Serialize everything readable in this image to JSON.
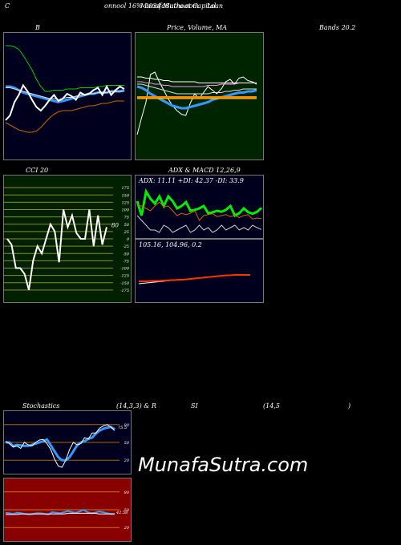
{
  "header": {
    "left": "C",
    "title_a": "onnool 16% 2034 Muthoot Capital",
    "title_b": "MunafaSutra.com",
    "title_c": "Loan",
    "bands_label": "Bands 20.2"
  },
  "watermark": "MunafaSutra.com",
  "colors": {
    "bb_bg": "#00001e",
    "price_bg": "#002400",
    "cci_bg": "#002000",
    "adx_bg": "#00001e",
    "stoch_bg": "#00001e",
    "rsi_bg": "#880000",
    "accent": "#3399ff"
  },
  "chart_data": [
    {
      "type": "line",
      "id": "bollinger",
      "title": "B",
      "series": [
        {
          "color": "#00cc00",
          "values": [
            92,
            92,
            91,
            89,
            84,
            78,
            72,
            64,
            58,
            54,
            54,
            55,
            55,
            55,
            56,
            56,
            56,
            57,
            57,
            57,
            57,
            58,
            58,
            59,
            59,
            59,
            59,
            59
          ]
        },
        {
          "color": "#3399ff",
          "values": [
            58,
            58,
            57,
            55,
            53,
            52,
            51,
            50,
            49,
            48,
            47,
            46,
            45,
            46,
            47,
            48,
            49,
            50,
            51,
            52,
            52,
            53,
            53,
            53,
            54,
            54,
            54,
            55
          ]
        },
        {
          "color": "#dddddd",
          "values": [
            57,
            57,
            56,
            55,
            54,
            53,
            52,
            51,
            50,
            49,
            48,
            48,
            47,
            48,
            49,
            49,
            50,
            51,
            51,
            52,
            52,
            53,
            53,
            53,
            54,
            54,
            54,
            54
          ]
        },
        {
          "color": "#cc6600",
          "values": [
            28,
            26,
            24,
            22,
            21,
            20,
            20,
            21,
            24,
            28,
            32,
            35,
            37,
            38,
            38,
            38,
            39,
            40,
            41,
            42,
            42,
            43,
            44,
            44,
            45,
            46,
            46,
            46
          ]
        },
        {
          "color": "#ffffff",
          "values": [
            30,
            34,
            45,
            51,
            59,
            54,
            47,
            41,
            38,
            42,
            47,
            51,
            46,
            48,
            52,
            50,
            47,
            53,
            51,
            52,
            55,
            57,
            51,
            58,
            51,
            55,
            58,
            56
          ]
        }
      ],
      "ylim": [
        0,
        100
      ]
    },
    {
      "type": "line",
      "id": "price_ma",
      "title": "Price, Volume, MA",
      "series": [
        {
          "color": "#ffffff",
          "values": [
            18,
            32,
            45,
            68,
            70,
            62,
            55,
            48,
            42,
            38,
            35,
            34,
            44,
            52,
            48,
            53,
            58,
            55,
            52,
            56,
            62,
            64,
            60,
            65,
            66,
            63,
            62,
            60
          ]
        },
        {
          "color": "#3399ff",
          "values": [
            58,
            57,
            55,
            52,
            50,
            48,
            46,
            44,
            42,
            41,
            40,
            40,
            41,
            42,
            43,
            44,
            45,
            47,
            48,
            49,
            50,
            51,
            52,
            53,
            53,
            54,
            54,
            55
          ]
        },
        {
          "color": "#dddddd",
          "values": [
            60,
            60,
            59,
            58,
            57,
            56,
            55,
            54,
            53,
            52,
            52,
            52,
            52,
            52,
            52,
            52,
            52,
            53,
            53,
            53,
            54,
            54,
            55,
            55,
            56,
            56,
            56,
            56
          ]
        },
        {
          "color": "#ff88ff",
          "values": [
            62,
            62,
            61,
            61,
            60,
            60,
            59,
            59,
            58,
            58,
            58,
            58,
            58,
            58,
            58,
            58,
            59,
            59,
            59,
            60,
            60,
            60,
            60,
            61,
            61,
            61,
            61,
            61
          ]
        },
        {
          "color": "#ffffff",
          "values": [
            66,
            66,
            65,
            65,
            64,
            64,
            63,
            63,
            62,
            62,
            62,
            62,
            62,
            62,
            61,
            61,
            61,
            61,
            61,
            61,
            61,
            61,
            61,
            61,
            61,
            61,
            61,
            61
          ]
        },
        {
          "color": "#ff8800",
          "values": [
            49,
            49,
            49,
            49,
            49,
            49,
            49,
            49,
            49,
            49,
            49,
            49,
            49,
            49,
            49,
            49,
            49,
            49,
            49,
            49,
            49,
            49,
            49,
            49,
            49,
            49,
            49,
            49
          ]
        }
      ],
      "ylim": [
        0,
        100
      ]
    },
    {
      "type": "line",
      "id": "cci",
      "title": "CCI 20",
      "current_label": "80",
      "ticks": [
        "175",
        "150",
        "125",
        "100",
        "75",
        "50",
        "25",
        "0",
        "-25",
        "-50",
        "-75",
        "-100",
        "-125",
        "-150",
        "-175"
      ],
      "values": [
        0,
        -20,
        -100,
        -100,
        -120,
        -175,
        -75,
        -25,
        -50,
        0,
        50,
        25,
        -80,
        100,
        40,
        80,
        20,
        0,
        0,
        100,
        -25,
        80,
        -20,
        40
      ],
      "ylim": [
        -200,
        200
      ]
    },
    {
      "type": "line",
      "id": "adx_macd",
      "title": "ADX & MACD 12,26,9",
      "adx_label": "ADX: 11.11 +DI: 42.37 -DI: 33.9",
      "macd_label": "105.16, 104.96, 0.2",
      "series": [
        {
          "name": "+DI",
          "color": "#00ee00",
          "values": [
            70,
            40,
            90,
            75,
            65,
            80,
            60,
            80,
            70,
            55,
            60,
            68,
            50,
            52,
            55,
            60,
            45,
            47,
            50,
            48,
            52,
            60,
            40,
            45,
            55,
            47,
            44,
            48,
            56
          ]
        },
        {
          "name": "-DI",
          "color": "#cc6600",
          "values": [
            62,
            60,
            55,
            50,
            60,
            68,
            58,
            60,
            50,
            40,
            45,
            42,
            45,
            50,
            30,
            40,
            42,
            44,
            38,
            40,
            42,
            38,
            40,
            36,
            40,
            42,
            33,
            35,
            34
          ]
        },
        {
          "name": "ADX",
          "color": "#cccccc",
          "values": [
            40,
            30,
            20,
            10,
            10,
            5,
            20,
            15,
            5,
            10,
            15,
            20,
            5,
            10,
            20,
            10,
            15,
            5,
            10,
            20,
            10,
            15,
            20,
            10,
            15,
            10,
            20,
            15,
            11
          ]
        }
      ],
      "macd": [
        {
          "color": "#ffffff",
          "values": [
            30,
            31,
            32,
            33,
            34,
            35,
            36,
            37,
            38,
            39,
            40,
            40,
            41,
            42,
            43,
            44,
            45,
            46,
            47,
            48,
            49,
            50,
            51,
            52,
            52,
            52,
            52,
            52,
            52
          ]
        },
        {
          "color": "#ff3300",
          "values": [
            36,
            36,
            36,
            37,
            37,
            37,
            38,
            38,
            39,
            39,
            40,
            40,
            41,
            42,
            43,
            44,
            45,
            46,
            47,
            48,
            49,
            50,
            51,
            51,
            52,
            52,
            52,
            52,
            52
          ]
        }
      ],
      "ylim": [
        0,
        100
      ]
    },
    {
      "type": "line",
      "id": "stochastics",
      "title": "Stochastics",
      "params": "(14,3,3) & R",
      "ticks": [
        "80",
        "50",
        "20"
      ],
      "current_label": "75.5",
      "series": [
        {
          "color": "#3399ff",
          "values": [
            50,
            50,
            44,
            46,
            45,
            44,
            44,
            46,
            48,
            50,
            52,
            55,
            45,
            35,
            25,
            20,
            20,
            25,
            35,
            45,
            50,
            52,
            56,
            58,
            65,
            70,
            73,
            75,
            76,
            72
          ]
        },
        {
          "color": "#ffffff",
          "values": [
            52,
            48,
            42,
            44,
            40,
            50,
            46,
            44,
            50,
            54,
            55,
            48,
            38,
            22,
            10,
            8,
            20,
            38,
            50,
            46,
            48,
            58,
            56,
            66,
            66,
            74,
            78,
            80,
            76,
            70
          ]
        }
      ],
      "ylim": [
        0,
        100
      ]
    },
    {
      "type": "line",
      "id": "rsi",
      "title": "SI",
      "params": "(14,5",
      "close": ")",
      "ticks": [
        "80",
        "50",
        "20"
      ],
      "current_label": "42.58",
      "series": [
        {
          "color": "#3399ff",
          "values": [
            45,
            44,
            43,
            45,
            44,
            43,
            42,
            43,
            44,
            44,
            43,
            42,
            46,
            45,
            44,
            46,
            48,
            46,
            45,
            47,
            50,
            46,
            44,
            45,
            47,
            46,
            44,
            43,
            43
          ]
        },
        {
          "color": "#ffffff",
          "values": [
            42,
            42,
            42,
            42,
            43,
            43,
            43,
            43,
            43,
            43,
            43,
            43,
            43,
            43,
            43,
            43,
            44,
            44,
            44,
            44,
            44,
            44,
            44,
            44,
            43,
            43,
            43,
            43,
            43
          ]
        }
      ],
      "ylim": [
        0,
        100
      ]
    }
  ]
}
